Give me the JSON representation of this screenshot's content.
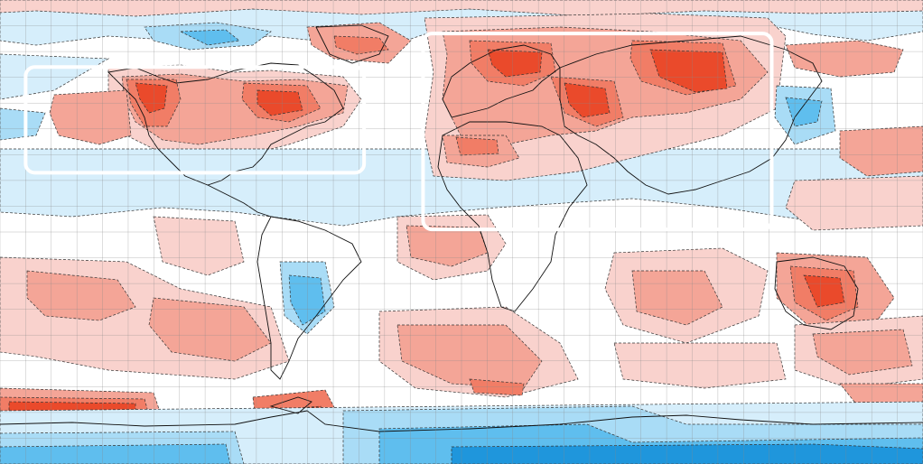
{
  "map": {
    "projection": "equirectangular",
    "lon_range": [
      -180,
      180
    ],
    "lat_range": [
      -90,
      90
    ],
    "gridline_spacing_deg": 10,
    "palette": {
      "ocean_white": "#ffffff",
      "cold_1": "#d6eefb",
      "cold_2": "#a9dcf6",
      "cold_3": "#5fbeee",
      "cold_4": "#1f96dc",
      "warm_1": "#f9d2cd",
      "warm_2": "#f4a597",
      "warm_3": "#f17d66",
      "warm_4": "#ea4a2b",
      "gridline": "#888888",
      "coast": "#111111",
      "highlight_box": "#ffffff"
    },
    "highlight_regions": [
      {
        "name": "north-america-box",
        "lon": [
          -170,
          -38
        ],
        "lat": [
          64,
          23
        ]
      },
      {
        "name": "eurasia-box",
        "lon": [
          -15,
          121
        ],
        "lat": [
          77,
          1
        ]
      }
    ]
  }
}
